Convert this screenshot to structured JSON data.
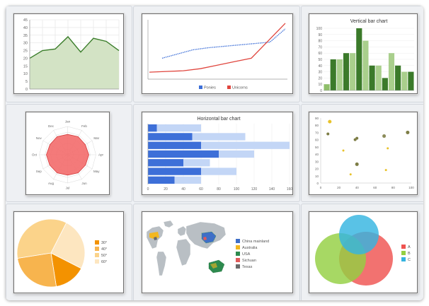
{
  "charts": [
    {
      "type": "area",
      "title": "",
      "y_ticks": [
        "0",
        "5",
        "10",
        "15",
        "20",
        "25",
        "30",
        "35",
        "40",
        "45"
      ],
      "ylim": [
        0,
        45
      ],
      "values": [
        20,
        25,
        26,
        34,
        24,
        33,
        31,
        25
      ],
      "line_color": "#3a7d2a",
      "fill_color": "#d3e3c5"
    },
    {
      "type": "line",
      "title": "",
      "series": [
        {
          "name": "Ponies",
          "color": "#3d6fd8",
          "dashed": true,
          "values": [
            30,
            36,
            42,
            45,
            47,
            49,
            51,
            53,
            72
          ]
        },
        {
          "name": "Unicorns",
          "color": "#e0463e",
          "dashed": false,
          "values": [
            10,
            11,
            12,
            15,
            20,
            25,
            30,
            55,
            80
          ]
        }
      ]
    },
    {
      "type": "bar",
      "title": "Vertical bar chart",
      "y_ticks": [
        "0",
        "10",
        "20",
        "30",
        "40",
        "50",
        "60",
        "70",
        "80",
        "90",
        "100"
      ],
      "ylim": [
        0,
        100
      ],
      "bars": [
        {
          "value": 10,
          "color": "#8fbf6a"
        },
        {
          "value": 50,
          "color": "#3b7a2a"
        },
        {
          "value": 50,
          "color": "#a9cf8c"
        },
        {
          "value": 60,
          "color": "#3b7a2a"
        },
        {
          "value": 60,
          "color": "#a9cf8c"
        },
        {
          "value": 100,
          "color": "#3b7a2a"
        },
        {
          "value": 80,
          "color": "#a9cf8c"
        },
        {
          "value": 40,
          "color": "#3b7a2a"
        },
        {
          "value": 40,
          "color": "#a9cf8c"
        },
        {
          "value": 20,
          "color": "#3b7a2a"
        },
        {
          "value": 60,
          "color": "#a9cf8c"
        },
        {
          "value": 40,
          "color": "#3b7a2a"
        },
        {
          "value": 30,
          "color": "#a9cf8c"
        },
        {
          "value": 30,
          "color": "#3b7a2a"
        }
      ]
    },
    {
      "type": "radar",
      "title": "",
      "labels": [
        "Jan",
        "Feb",
        "Mar",
        "Apr",
        "May",
        "Jun",
        "Jul",
        "Aug",
        "Sep",
        "Oct",
        "Nov",
        "Dec"
      ],
      "values": [
        0.72,
        0.74,
        0.72,
        0.75,
        0.73,
        0.74,
        0.72,
        0.74,
        0.73,
        0.75,
        0.72,
        0.74
      ],
      "fill_color": "#f36b6b"
    },
    {
      "type": "hbar",
      "title": "Horizontal bar chart",
      "x_ticks": [
        "0",
        "20",
        "40",
        "60",
        "80",
        "100",
        "120",
        "140",
        "160"
      ],
      "xlim": [
        0,
        160
      ],
      "rows": [
        {
          "a": 10,
          "b": 60
        },
        {
          "a": 50,
          "b": 110
        },
        {
          "a": 60,
          "b": 160
        },
        {
          "a": 80,
          "b": 120
        },
        {
          "a": 40,
          "b": 70
        },
        {
          "a": 60,
          "b": 100
        },
        {
          "a": 30,
          "b": 60
        }
      ],
      "color_a": "#3d6fd8",
      "color_b": "#c3d6f6"
    },
    {
      "type": "scatter",
      "title": "",
      "x_ticks": [
        "0",
        "20",
        "40",
        "60",
        "80",
        "100"
      ],
      "y_ticks": [
        "0",
        "10",
        "20",
        "30",
        "40",
        "50",
        "60",
        "70",
        "80",
        "90"
      ],
      "xlim": [
        0,
        100
      ],
      "ylim": [
        0,
        90
      ],
      "points": [
        {
          "x": 10,
          "y": 85,
          "r": 2.5,
          "color": "#e8c22a"
        },
        {
          "x": 8,
          "y": 68,
          "r": 2,
          "color": "#7d7d45"
        },
        {
          "x": 38,
          "y": 60,
          "r": 2,
          "color": "#7d7d45"
        },
        {
          "x": 40,
          "y": 62,
          "r": 2,
          "color": "#7d7d45"
        },
        {
          "x": 70,
          "y": 65,
          "r": 2.5,
          "color": "#8c8c5a"
        },
        {
          "x": 96,
          "y": 70,
          "r": 2.5,
          "color": "#7d7d45"
        },
        {
          "x": 74,
          "y": 48,
          "r": 1.5,
          "color": "#e8c22a"
        },
        {
          "x": 25,
          "y": 45,
          "r": 1.5,
          "color": "#e8c22a"
        },
        {
          "x": 40,
          "y": 26,
          "r": 2.5,
          "color": "#7d7d45"
        },
        {
          "x": 72,
          "y": 18,
          "r": 1.5,
          "color": "#e8c22a"
        },
        {
          "x": 33,
          "y": 12,
          "r": 1.5,
          "color": "#e8c22a"
        }
      ]
    },
    {
      "type": "pie",
      "title": "",
      "slices": [
        {
          "label": "30°",
          "value": 15,
          "color": "#f39200"
        },
        {
          "label": "40°",
          "value": 25,
          "color": "#f7b44e"
        },
        {
          "label": "50°",
          "value": 35,
          "color": "#fbd38a"
        },
        {
          "label": "60°",
          "value": 25,
          "color": "#fde6c0"
        }
      ]
    },
    {
      "type": "map",
      "title": "",
      "legend": [
        {
          "label": "China mainland",
          "color": "#3f6fc7"
        },
        {
          "label": "Australia",
          "color": "#f3b71f"
        },
        {
          "label": "USA",
          "color": "#2d8a4e"
        },
        {
          "label": "Sichuan",
          "color": "#e05a5a"
        },
        {
          "label": "Texas",
          "color": "#6a6a6a"
        }
      ]
    },
    {
      "type": "venn",
      "title": "",
      "sets": [
        {
          "label": "A",
          "color": "#ef5350"
        },
        {
          "label": "B",
          "color": "#94d042"
        },
        {
          "label": "C",
          "color": "#35b4e0"
        }
      ]
    }
  ]
}
